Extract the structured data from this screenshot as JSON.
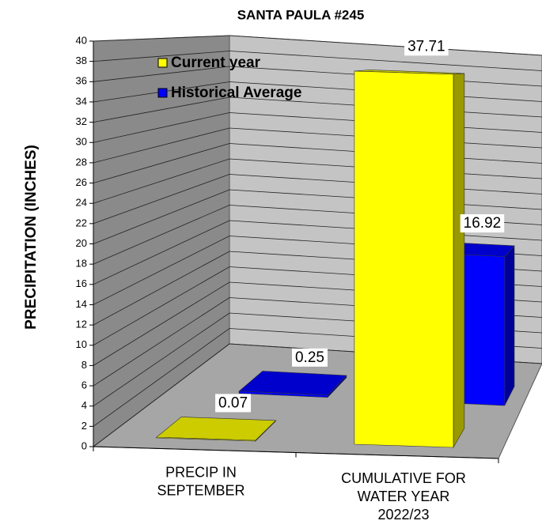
{
  "chart_data": {
    "type": "bar3d",
    "title": "SANTA PAULA #245",
    "y_label": "PRECIPITATION  (INCHES)",
    "categories": [
      [
        "PRECIP IN",
        "SEPTEMBER"
      ],
      [
        "CUMULATIVE FOR",
        "WATER YEAR",
        "2022/23"
      ]
    ],
    "series": [
      {
        "name": "Current year",
        "color": "#ffff00",
        "values": [
          0.07,
          37.71
        ]
      },
      {
        "name": "Historical Average",
        "color": "#0000ff",
        "values": [
          0.25,
          16.92
        ]
      }
    ],
    "ylim": [
      0,
      40
    ],
    "yticks": [
      0,
      2,
      4,
      6,
      8,
      10,
      12,
      14,
      16,
      18,
      20,
      22,
      24,
      26,
      28,
      30,
      32,
      34,
      36,
      38,
      40
    ],
    "grid": true,
    "legend": "top-left"
  }
}
